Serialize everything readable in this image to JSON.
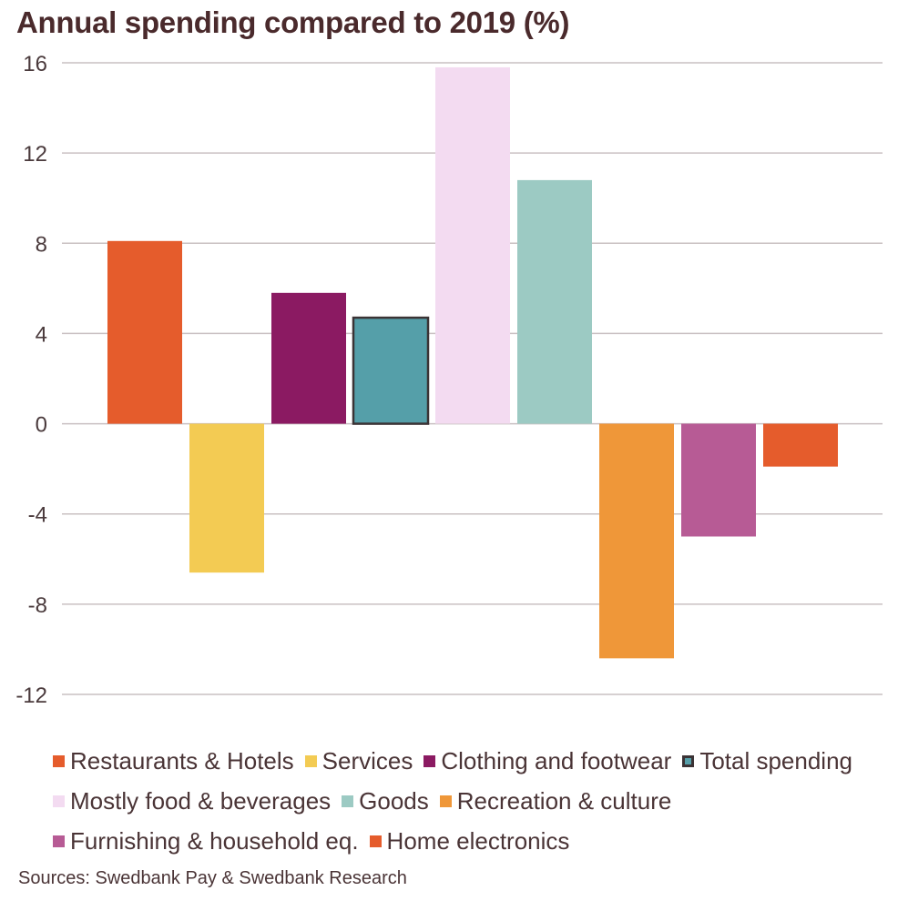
{
  "chart_data": {
    "type": "bar",
    "title": "Annual spending compared to 2019 (%)",
    "xlabel": "",
    "ylabel": "",
    "ylim": [
      -12,
      16
    ],
    "yticks": [
      16,
      12,
      8,
      4,
      0,
      -4,
      -8,
      -12
    ],
    "grid": true,
    "legend_position": "bottom",
    "categories": [
      "Restaurants & Hotels",
      "Services",
      "Clothing and footwear",
      "Total spending",
      "Mostly food & beverages",
      "Goods",
      "Recreation & culture",
      "Furnishing & household eq.",
      "Home electronics"
    ],
    "values": [
      8.1,
      -6.6,
      5.8,
      4.7,
      15.8,
      10.8,
      -10.4,
      -5.0,
      -1.9
    ],
    "colors": [
      "#e55c2c",
      "#f3cb53",
      "#8b1a62",
      "#559fa9",
      "#f3dbf1",
      "#9ccac3",
      "#ef9739",
      "#b75b95",
      "#e55c2c"
    ],
    "outlined": [
      false,
      false,
      false,
      true,
      false,
      false,
      false,
      false,
      false
    ],
    "outline_color": "#3b3335",
    "source": "Sources: Swedbank Pay & Swedbank Research"
  },
  "legend_rows": [
    [
      0,
      1,
      2,
      3
    ],
    [
      4,
      5,
      6
    ],
    [
      7,
      8
    ]
  ]
}
